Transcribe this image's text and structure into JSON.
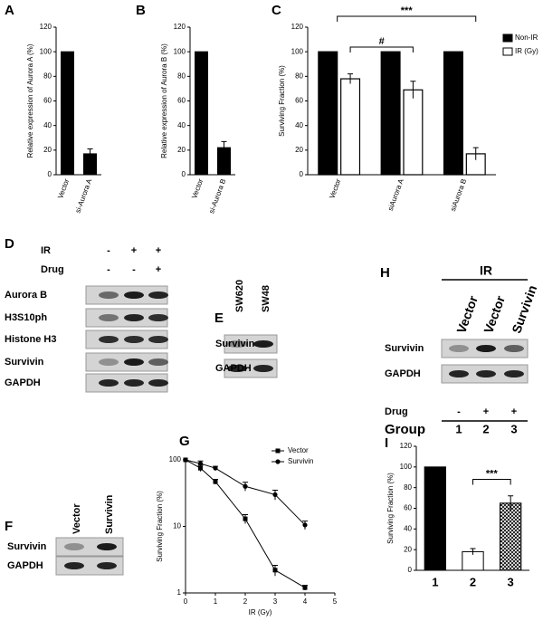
{
  "chart_data": [
    {
      "type": "bar",
      "panel": "A",
      "ylabel": "Relative expression of Aurora A (%)",
      "categories": [
        "Vector",
        "si-Aurora A"
      ],
      "values": [
        100,
        17
      ],
      "errors": [
        null,
        4
      ],
      "color": "#000000",
      "ylim": [
        0,
        120
      ],
      "yticks": [
        0,
        20,
        40,
        60,
        80,
        100,
        120
      ]
    },
    {
      "type": "bar",
      "panel": "B",
      "ylabel": "Relative expression of Aurora B (%)",
      "categories": [
        "Vector",
        "si-Aurora B"
      ],
      "values": [
        100,
        22
      ],
      "errors": [
        null,
        5
      ],
      "color": "#000000",
      "ylim": [
        0,
        120
      ],
      "yticks": [
        0,
        20,
        40,
        60,
        80,
        100,
        120
      ]
    },
    {
      "type": "grouped_bar",
      "panel": "C",
      "ylabel": "Surviving Fraction (%)",
      "categories": [
        "Vector",
        "siAurora A",
        "siAurora B"
      ],
      "series": [
        {
          "name": "Non-IR",
          "color": "#000000",
          "values": [
            100,
            100,
            100
          ],
          "errors": [
            null,
            null,
            null
          ]
        },
        {
          "name": "IR (Gy)",
          "color": "#ffffff",
          "values": [
            78,
            69,
            17
          ],
          "errors": [
            4,
            7,
            5
          ]
        }
      ],
      "ylim": [
        0,
        120
      ],
      "yticks": [
        0,
        20,
        40,
        60,
        80,
        100,
        120
      ],
      "annotations": [
        "#",
        "***"
      ],
      "legend": "upper right"
    },
    {
      "type": "line",
      "panel": "G",
      "xlabel": "IR (Gy)",
      "ylabel": "Surviving Fraction (%)",
      "x": [
        0,
        0.5,
        1,
        2,
        3,
        4
      ],
      "series": [
        {
          "name": "Vector",
          "color": "#000000",
          "marker": "square",
          "values": [
            100,
            75,
            47,
            13,
            2.2,
            1.2
          ],
          "errors": [
            null,
            8,
            4,
            2,
            0.4,
            0.1
          ]
        },
        {
          "name": "Survivin",
          "color": "#000000",
          "marker": "circle",
          "values": [
            100,
            88,
            75,
            40,
            30,
            10.5
          ],
          "errors": [
            null,
            8,
            5,
            6,
            5,
            1.5
          ]
        }
      ],
      "xlim": [
        0,
        5
      ],
      "xticks": [
        0,
        1,
        2,
        3,
        4,
        5
      ],
      "ylim": [
        1,
        100
      ],
      "yticks": [
        1,
        10,
        100
      ],
      "yscale": "log",
      "legend": "upper right"
    },
    {
      "type": "bar",
      "panel": "I",
      "ylabel": "Surviving Fraction (%)",
      "categories": [
        "1",
        "2",
        "3"
      ],
      "values": [
        100,
        18,
        65
      ],
      "errors": [
        null,
        3,
        7
      ],
      "colors": [
        "#000000",
        "#ffffff",
        "#000000"
      ],
      "pattern": [
        null,
        null,
        "crosshatch"
      ],
      "ylim": [
        0,
        120
      ],
      "yticks": [
        0,
        20,
        40,
        60,
        80,
        100,
        120
      ],
      "annotations": [
        "***"
      ]
    }
  ],
  "blots": {
    "D": {
      "panel": "D",
      "conditions": [
        {
          "name": "IR",
          "signs": [
            "-",
            "+",
            "+"
          ]
        },
        {
          "name": "Drug",
          "signs": [
            "-",
            "-",
            "+"
          ]
        }
      ],
      "rows": [
        "Aurora B",
        "H3S10ph",
        "Histone H3",
        "Survivin",
        "GAPDH"
      ]
    },
    "E": {
      "panel": "E",
      "lanes": [
        "SW620",
        "SW48"
      ],
      "rows": [
        "Survivin",
        "GAPDH"
      ]
    },
    "F": {
      "panel": "F",
      "lanes": [
        "Vector",
        "Survivin"
      ],
      "rows": [
        "Survivin",
        "GAPDH"
      ]
    },
    "H": {
      "panel": "H",
      "header": "IR",
      "lanes": [
        "Vector",
        "Vector",
        "Survivin"
      ],
      "rows": [
        "Survivin",
        "GAPDH"
      ],
      "conditions": [
        {
          "name": "Drug",
          "signs": [
            "-",
            "+",
            "+"
          ]
        },
        {
          "name": "Group",
          "signs": [
            "1",
            "2",
            "3"
          ]
        }
      ]
    }
  }
}
